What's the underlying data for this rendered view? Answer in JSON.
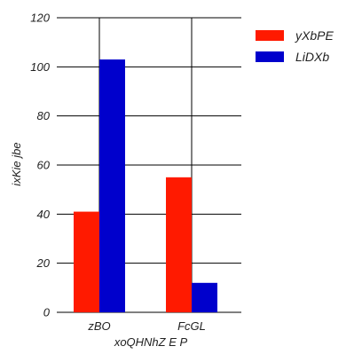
{
  "chart_data": {
    "type": "bar",
    "categories": [
      "zBO",
      "FcGL"
    ],
    "series": [
      {
        "name": "yXbPE",
        "values": [
          41,
          55
        ],
        "color": "#ff1a00"
      },
      {
        "name": "LiDXb",
        "values": [
          103,
          12
        ],
        "color": "#0000cc"
      }
    ],
    "xlabel": "xoQHNhZ E P",
    "ylabel": "ixKie jbe",
    "ylim": [
      0,
      120
    ],
    "yticks": [
      0,
      20,
      40,
      60,
      80,
      100,
      120
    ],
    "grid": true,
    "legend": "top-right"
  }
}
